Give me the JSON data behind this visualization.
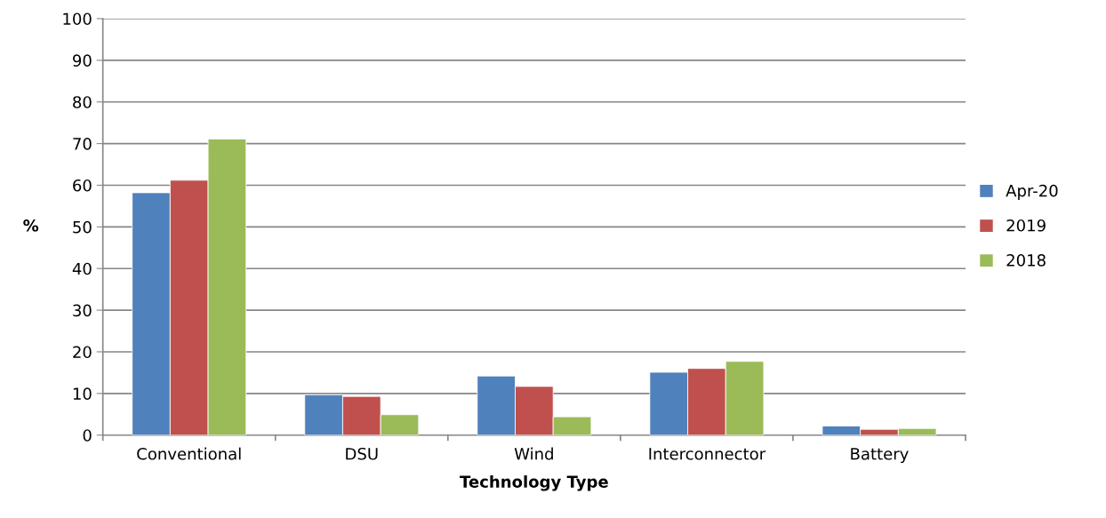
{
  "chart_data": {
    "type": "bar",
    "xlabel": "Technology Type",
    "ylabel": "%",
    "categories": [
      "Conventional",
      "DSU",
      "Wind",
      "Interconnector",
      "Battery"
    ],
    "series": [
      {
        "name": "Apr-20",
        "color": "#4f81bd",
        "values": [
          58.2,
          9.7,
          14.2,
          15.1,
          2.2
        ]
      },
      {
        "name": "2019",
        "color": "#c0504d",
        "values": [
          61.2,
          9.3,
          11.7,
          16.0,
          1.4
        ]
      },
      {
        "name": "2018",
        "color": "#9bbb59",
        "values": [
          71.1,
          4.9,
          4.4,
          17.7,
          1.6
        ]
      }
    ],
    "ylim": [
      0,
      100
    ],
    "yticks": [
      0,
      10,
      20,
      30,
      40,
      50,
      60,
      70,
      80,
      90,
      100
    ],
    "grid": "y",
    "legend": "right"
  }
}
